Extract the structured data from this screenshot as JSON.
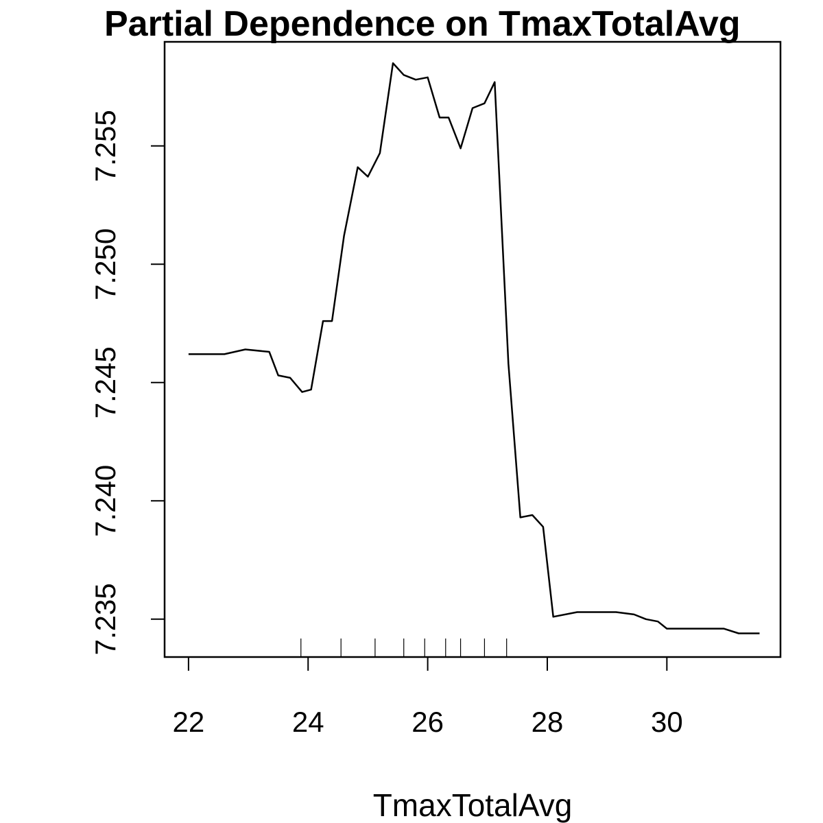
{
  "chart_data": {
    "type": "line",
    "title": "Partial Dependence on TmaxTotalAvg",
    "xlabel": "TmaxTotalAvg",
    "ylabel": "",
    "xlim": [
      21.6,
      31.9
    ],
    "ylim": [
      7.2334,
      7.2594
    ],
    "xticks": [
      22,
      24,
      26,
      28,
      30
    ],
    "yticks": [
      7.235,
      7.24,
      7.245,
      7.25,
      7.255
    ],
    "grid": false,
    "x": [
      22.0,
      22.15,
      22.6,
      22.95,
      23.35,
      23.5,
      23.7,
      23.9,
      24.05,
      24.25,
      24.4,
      24.6,
      24.83,
      25.0,
      25.2,
      25.42,
      25.6,
      25.8,
      26.0,
      26.2,
      26.35,
      26.55,
      26.75,
      26.95,
      27.12,
      27.35,
      27.55,
      27.75,
      27.93,
      28.1,
      28.5,
      28.85,
      29.15,
      29.45,
      29.65,
      29.85,
      30.0,
      30.4,
      30.95,
      31.2,
      31.55
    ],
    "y": [
      7.2462,
      7.2462,
      7.2462,
      7.2464,
      7.2463,
      7.2453,
      7.2452,
      7.2446,
      7.2447,
      7.2476,
      7.2476,
      7.2512,
      7.2541,
      7.2537,
      7.2547,
      7.2585,
      7.258,
      7.2578,
      7.2579,
      7.2562,
      7.2562,
      7.2549,
      7.2566,
      7.2568,
      7.2577,
      7.2458,
      7.2393,
      7.2394,
      7.2389,
      7.2351,
      7.2353,
      7.2353,
      7.2353,
      7.2352,
      7.235,
      7.2349,
      7.2346,
      7.2346,
      7.2346,
      7.2344,
      7.2344
    ],
    "rug": [
      23.88,
      24.55,
      25.12,
      25.6,
      25.95,
      26.3,
      26.55,
      26.95,
      27.32
    ]
  }
}
